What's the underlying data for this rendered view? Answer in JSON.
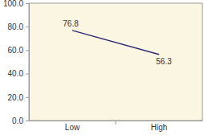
{
  "chart_data": {
    "type": "line",
    "categories": [
      "Low",
      "High"
    ],
    "values": [
      76.8,
      56.3
    ],
    "color": "#2e2a78",
    "ylim": [
      0,
      100
    ],
    "yticks": [
      {
        "value": 0,
        "label": "0.0"
      },
      {
        "value": 20,
        "label": "20.0"
      },
      {
        "value": 40,
        "label": "40.0"
      },
      {
        "value": 60,
        "label": "60.0"
      },
      {
        "value": 80,
        "label": "80.0"
      },
      {
        "value": 100,
        "label": "100.0"
      }
    ],
    "data_labels": true,
    "grid": false
  }
}
